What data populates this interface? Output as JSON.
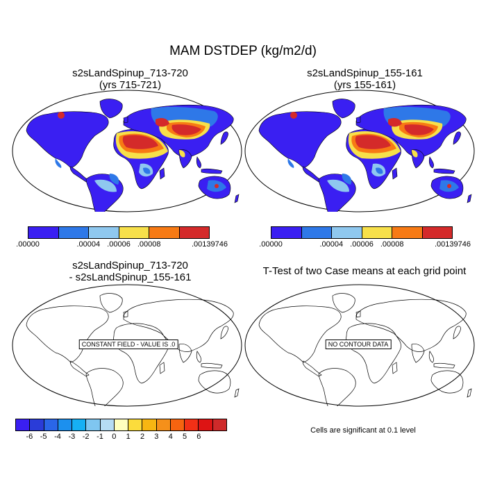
{
  "main_title": "MAM DSTDEP (kg/m2/d)",
  "panels": [
    {
      "title": "s2sLandSpinup_713-720",
      "subtitle": "(yrs 715-721)"
    },
    {
      "title": "s2sLandSpinup_155-161",
      "subtitle": "(yrs 155-161)"
    },
    {
      "title": "s2sLandSpinup_713-720",
      "subtitle": "- s2sLandSpinup_155-161"
    },
    {
      "title": "T-Test of two Case means at each grid point",
      "subtitle": ""
    }
  ],
  "colors": {
    "levels": [
      "#3a1ff2",
      "#2e78e8",
      "#8fc8ef",
      "#f7e04a",
      "#f77a14",
      "#d42a2a"
    ],
    "diff": [
      "#3a1ff2",
      "#2a3cd8",
      "#2a66e8",
      "#1c90ee",
      "#16b0f4",
      "#7fc6f0",
      "#b6dcf4",
      "#ffffbe",
      "#fbdc3c",
      "#f7b612",
      "#f5901a",
      "#f66410",
      "#f23016",
      "#dd1414",
      "#cf2a2a"
    ]
  },
  "colorbar_top": {
    "labels": [
      ".00000",
      ".00004",
      ".00006",
      ".00008",
      ".00139746"
    ],
    "label_boundaries": [
      0,
      2,
      3,
      4,
      6
    ]
  },
  "colorbar_diff": {
    "labels": [
      "-6",
      "-5",
      "-4",
      "-3",
      "-2",
      "-1",
      "0",
      "1",
      "2",
      "3",
      "4",
      "5",
      "6"
    ]
  },
  "annotations": {
    "constant_field": "CONSTANT FIELD - VALUE IS .0",
    "no_contour": "NO CONTOUR DATA",
    "significance": "Cells are significant at 0.1 level"
  },
  "chart_data": [
    {
      "type": "heatmap",
      "title": "s2sLandSpinup_713-720 (yrs 715-721)",
      "variable": "MAM DSTDEP",
      "units": "kg/m2/d",
      "projection": "Robinson",
      "levels": [
        0.0,
        2e-05,
        4e-05,
        6e-05,
        8e-05,
        0.0001,
        0.00139746
      ],
      "colorbar_labels": [
        ".00000",
        ".00004",
        ".00006",
        ".00008",
        ".00139746"
      ]
    },
    {
      "type": "heatmap",
      "title": "s2sLandSpinup_155-161 (yrs 155-161)",
      "variable": "MAM DSTDEP",
      "units": "kg/m2/d",
      "projection": "Robinson",
      "levels": [
        0.0,
        2e-05,
        4e-05,
        6e-05,
        8e-05,
        0.0001,
        0.00139746
      ],
      "colorbar_labels": [
        ".00000",
        ".00004",
        ".00006",
        ".00008",
        ".00139746"
      ]
    },
    {
      "type": "heatmap",
      "title": "s2sLandSpinup_713-720 - s2sLandSpinup_155-161",
      "field_value": 0.0,
      "note": "CONSTANT FIELD - VALUE IS .0",
      "levels": [
        -6,
        -5,
        -4,
        -3,
        -2,
        -1,
        0,
        1,
        2,
        3,
        4,
        5,
        6
      ]
    },
    {
      "type": "heatmap",
      "title": "T-Test of two Case means at each grid point",
      "note": "NO CONTOUR DATA",
      "significance_level": 0.1
    }
  ]
}
